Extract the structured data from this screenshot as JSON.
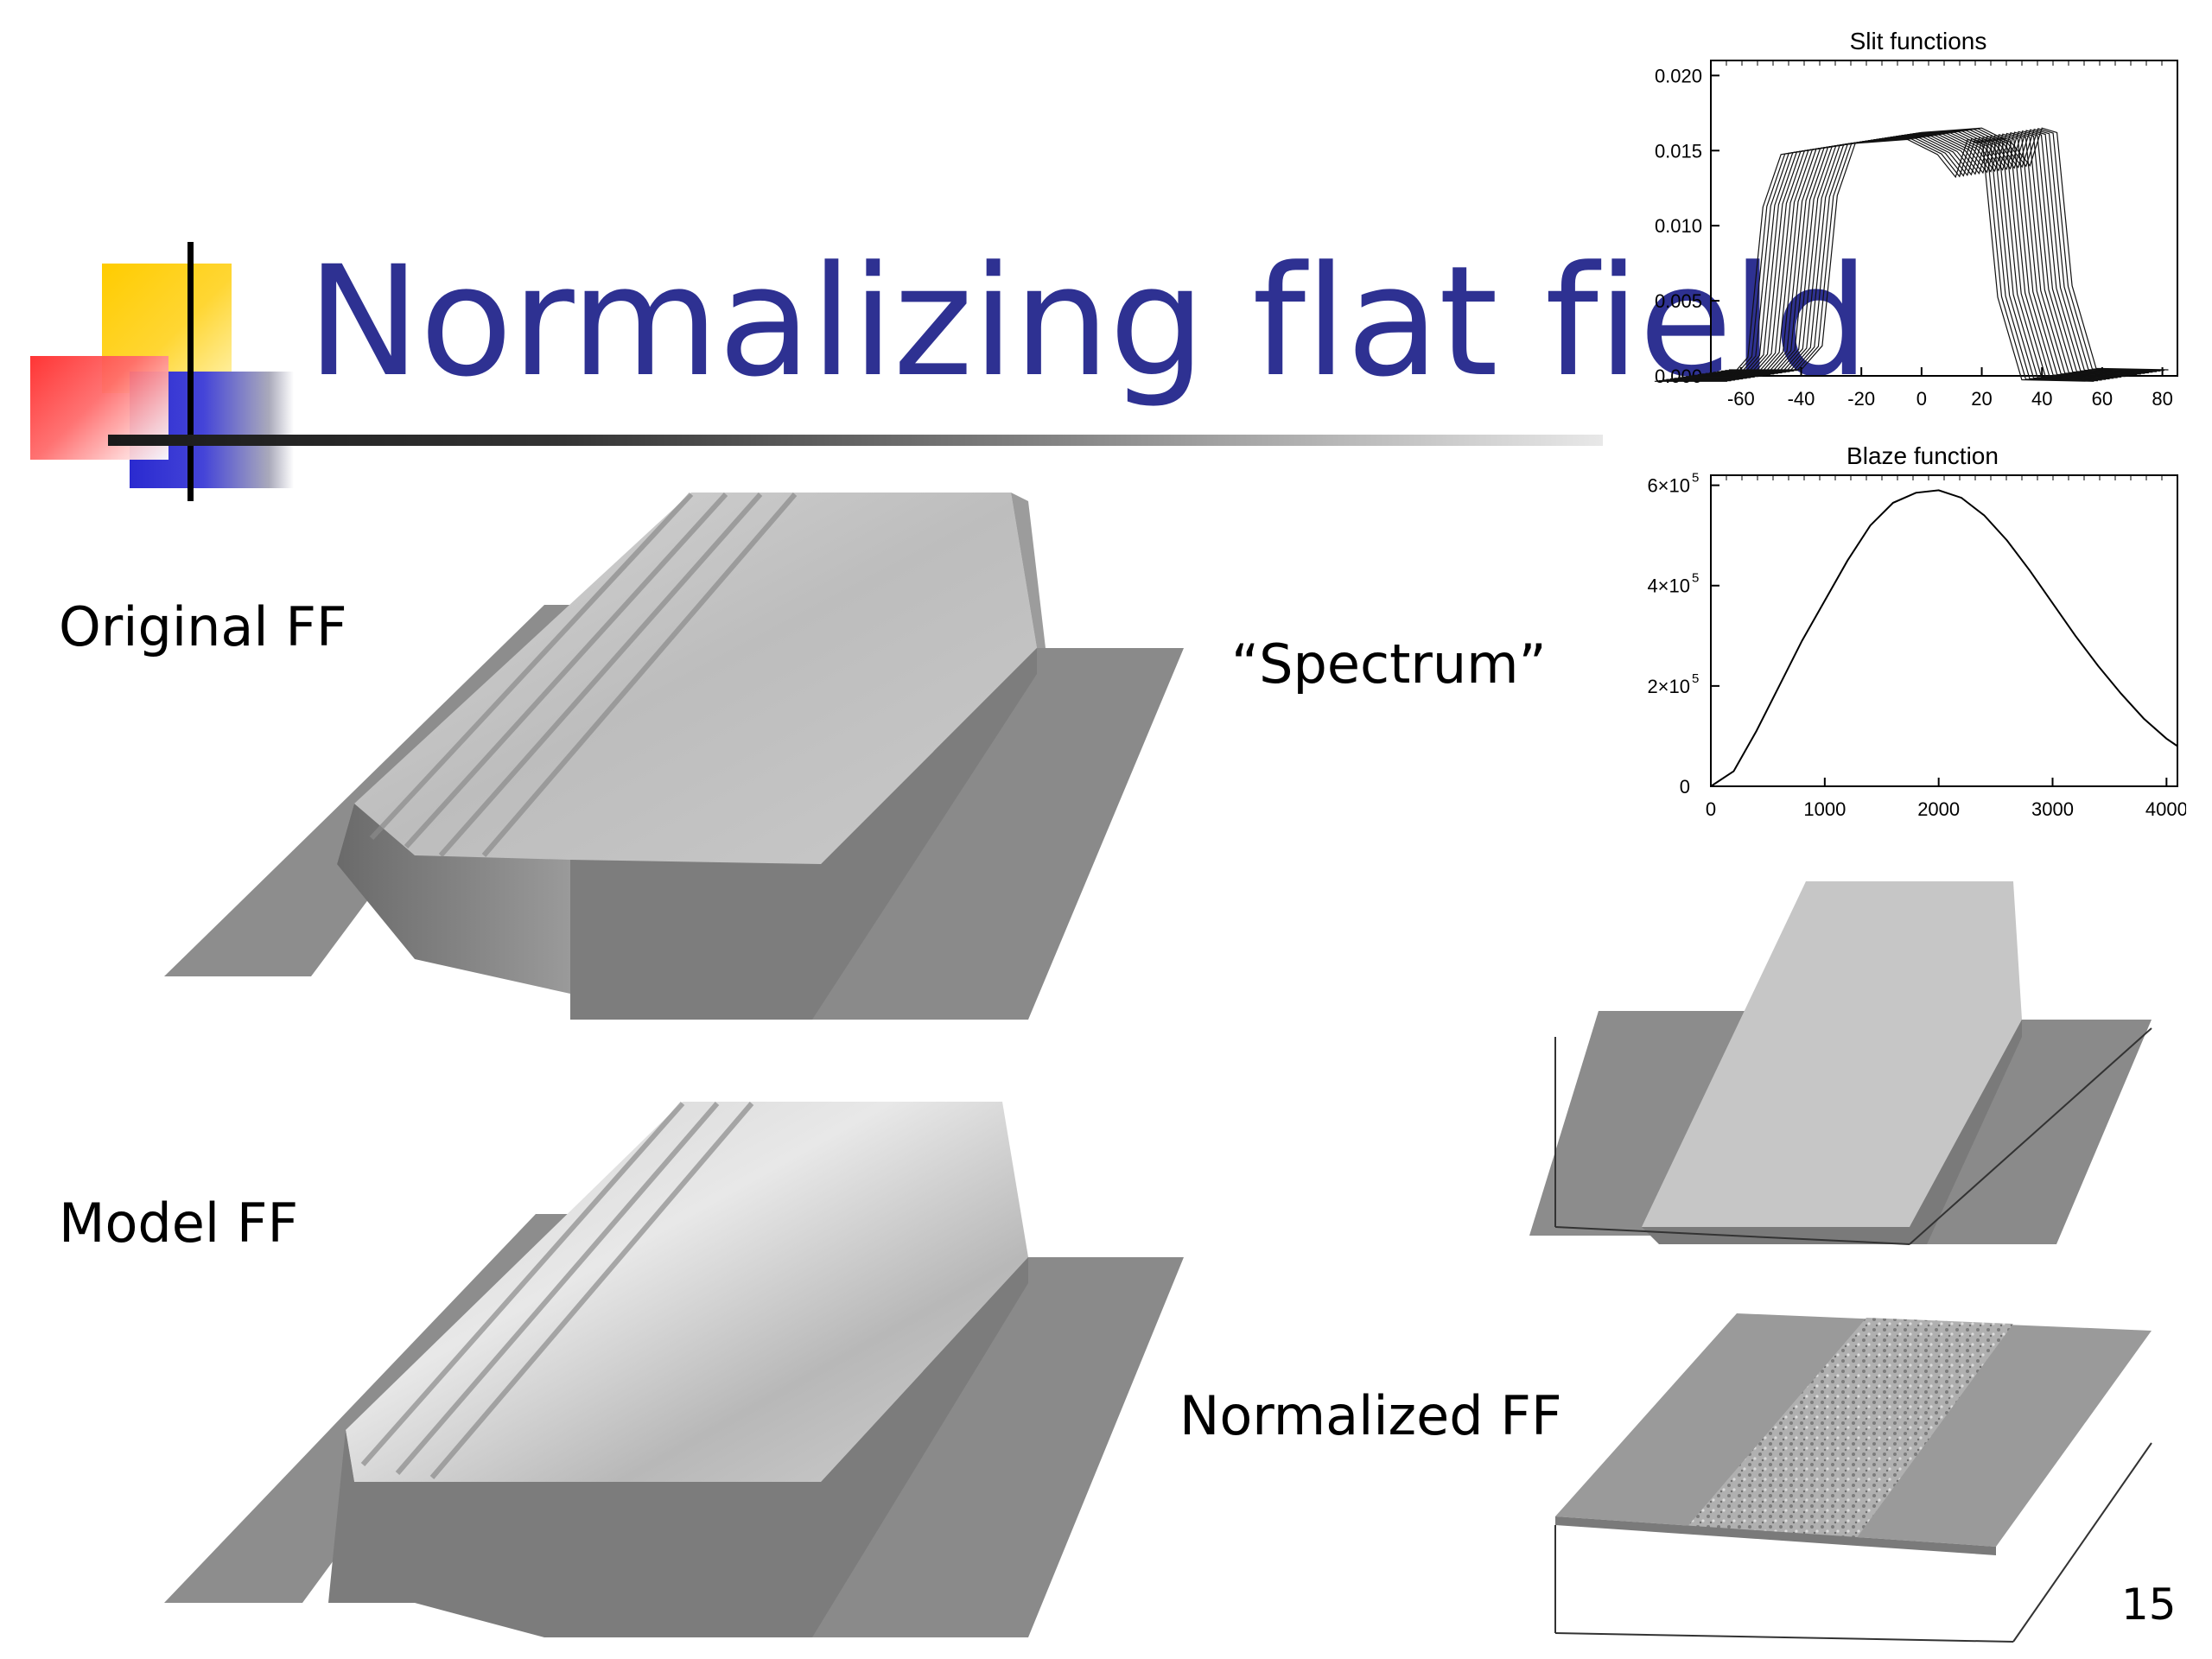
{
  "slide": {
    "title": "Normalizing flat field",
    "page_number": "15",
    "colors": {
      "title": "#2e3192",
      "logo_yellow": "#ffcc00",
      "logo_red": "#ff3333",
      "logo_blue": "#3333cc"
    }
  },
  "labels": {
    "original": "Original FF",
    "model": "Model FF",
    "spectrum": "“Spectrum”",
    "normalized": "Normalized FF"
  },
  "chart_data": [
    {
      "type": "line",
      "title": "Slit functions",
      "xlim": [
        -70,
        85
      ],
      "ylim": [
        0,
        0.021
      ],
      "xticks": [
        "-60",
        "-40",
        "-20",
        "0",
        "20",
        "40",
        "60",
        "80"
      ],
      "yticks": [
        "0.000",
        "0.005",
        "0.010",
        "0.015",
        "0.020"
      ],
      "series_description": "stack of ~20 offset slit profiles",
      "series": [
        {
          "x": [
            -64,
            -40,
            -33,
            -28,
            -22,
            0,
            20,
            30,
            36,
            40,
            45,
            50,
            58,
            82
          ],
          "values": [
            0.0004,
            0.0004,
            0.002,
            0.012,
            0.0155,
            0.0162,
            0.0165,
            0.0155,
            0.014,
            0.0165,
            0.0162,
            0.006,
            0.0005,
            0.0004
          ]
        }
      ]
    },
    {
      "type": "line",
      "title": "Blaze function",
      "xlim": [
        0,
        4096
      ],
      "ylim": [
        0,
        620000
      ],
      "xticks": [
        "0",
        "1000",
        "2000",
        "3000",
        "4000"
      ],
      "yticks": [
        {
          "base": "0",
          "exp": ""
        },
        {
          "base": "2×10",
          "exp": "5"
        },
        {
          "base": "4×10",
          "exp": "5"
        },
        {
          "base": "6×10",
          "exp": "5"
        }
      ],
      "series": [
        {
          "x": [
            0,
            200,
            400,
            600,
            800,
            1000,
            1200,
            1400,
            1600,
            1800,
            2000,
            2200,
            2400,
            2600,
            2800,
            3000,
            3200,
            3400,
            3600,
            3800,
            4000,
            4096
          ],
          "values": [
            0,
            30000,
            110000,
            200000,
            290000,
            370000,
            450000,
            520000,
            565000,
            585000,
            590000,
            575000,
            540000,
            490000,
            430000,
            365000,
            300000,
            240000,
            185000,
            135000,
            95000,
            80000
          ]
        }
      ]
    }
  ]
}
